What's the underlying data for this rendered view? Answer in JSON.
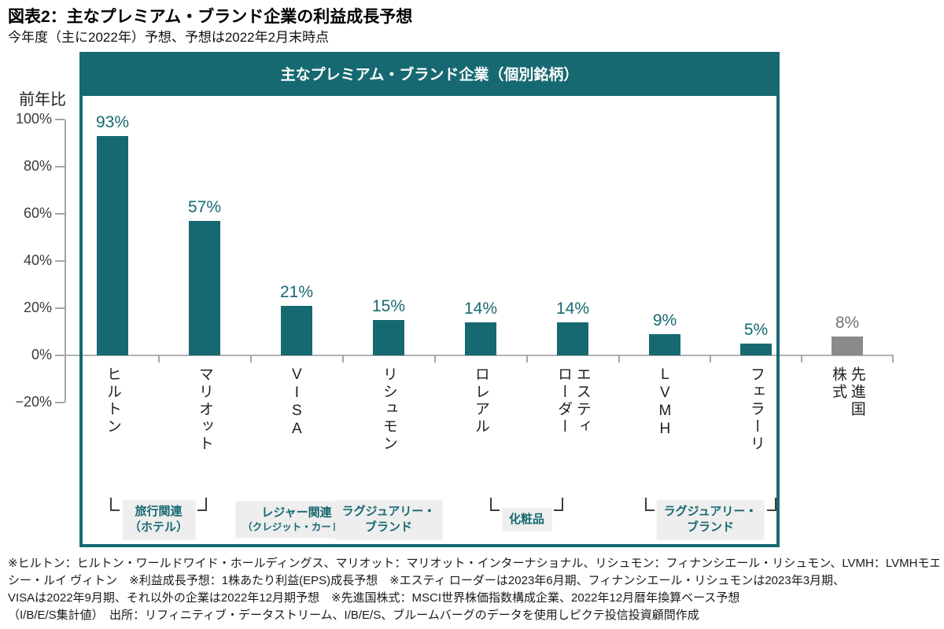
{
  "title": "図表2：主なプレミアム・ブランド企業の利益成長予想",
  "subtitle": "今年度（主に2022年）予想、予想は2022年2月末時点",
  "panel": {
    "header": "主なプレミアム・ブランド企業（個別銘柄）"
  },
  "colors": {
    "teal": "#176971",
    "benchmark_gray": "#8a8a8a",
    "benchmark_label_gray": "#737373",
    "group_label_bg": "#eeeeee",
    "axis_gray": "#a6a6a6"
  },
  "chart_data": {
    "type": "bar",
    "title": "主なプレミアム・ブランド企業（個別銘柄）",
    "xlabel": "",
    "ylabel": "前年比",
    "ylim": [
      -20,
      100
    ],
    "grid": false,
    "yticks": {
      "values": [
        100,
        80,
        60,
        40,
        20,
        0,
        -20
      ],
      "labels": [
        "100%",
        "80%",
        "60%",
        "40%",
        "20%",
        "0%",
        "−20%"
      ]
    },
    "categories": [
      "ヒルトン",
      "マリオット",
      "VISA",
      "リシュモン",
      "ロレアル",
      "エスティ\nローダー",
      "LVMH",
      "フェラーリ",
      "先進国\n株式"
    ],
    "values": [
      93,
      57,
      21,
      15,
      14,
      14,
      9,
      5,
      8
    ],
    "value_labels": [
      "93%",
      "57%",
      "21%",
      "15%",
      "14%",
      "14%",
      "9%",
      "5%",
      "8%"
    ],
    "bar_colors": [
      "#176971",
      "#176971",
      "#176971",
      "#176971",
      "#176971",
      "#176971",
      "#176971",
      "#176971",
      "#8a8a8a"
    ],
    "value_label_colors": [
      "#176971",
      "#176971",
      "#176971",
      "#176971",
      "#176971",
      "#176971",
      "#176971",
      "#176971",
      "#737373"
    ],
    "groups": [
      {
        "lines": [
          "旅行関連",
          "（ホテル）"
        ],
        "from": 0,
        "to": 1,
        "brackets": true,
        "small_second_line": false
      },
      {
        "lines": [
          "レジャー関連",
          "（クレジット・カード）"
        ],
        "from": 2,
        "to": 2,
        "brackets": false,
        "small_second_line": true
      },
      {
        "lines": [
          "ラグジュアリー・",
          "ブランド"
        ],
        "from": 3,
        "to": 3,
        "brackets": false,
        "small_second_line": false
      },
      {
        "lines": [
          "化粧品"
        ],
        "from": 4,
        "to": 5,
        "brackets": true,
        "small_second_line": false
      },
      {
        "lines": [
          "ラグジュアリー・",
          "ブランド"
        ],
        "from": 6,
        "to": 7,
        "brackets": true,
        "small_second_line": false
      }
    ]
  },
  "footnotes": [
    "※ヒルトン：ヒルトン・ワールドワイド・ホールディングス、マリオット：マリオット・インターナショナル、リシュモン：フィナンシエール・リシュモン、LVMH：LVMHモエ ヘネ",
    "シー・ルイ ヴィトン　※利益成長予想：1株あたり利益(EPS)成長予想　※エスティ ローダーは2023年6月期、フィナンシエール・リシュモンは2023年3月期、",
    "VISAは2022年9月期、それ以外の企業は2022年12月期予想　※先進国株式：MSCI世界株価指数構成企業、2022年12月暦年換算ベース予想",
    "（I/B/E/S集計値）　出所：リフィニティブ・データストリーム、I/B/E/S、ブルームバーグのデータを使用しピクテ投信投資顧問作成"
  ]
}
